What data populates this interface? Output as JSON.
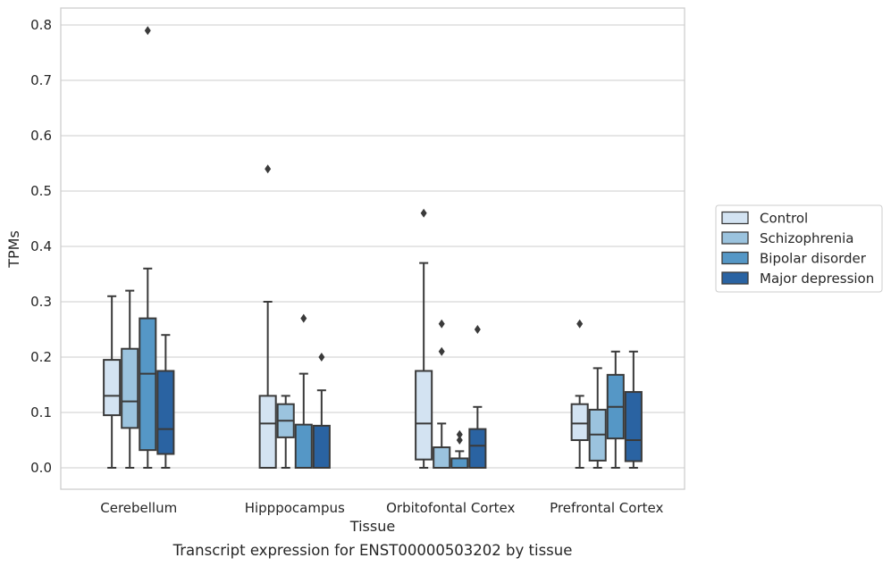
{
  "caption": "Transcript expression for ENST00000503202 by tissue",
  "chart_data": {
    "type": "box",
    "title": "",
    "xlabel": "Tissue",
    "ylabel": "TPMs",
    "ylim": [
      -0.04,
      0.83
    ],
    "yticks": [
      "0.0",
      "0.1",
      "0.2",
      "0.3",
      "0.4",
      "0.5",
      "0.6",
      "0.7",
      "0.8"
    ],
    "grid": "horizontal",
    "legend_position": "right",
    "categories": [
      "Cerebellum",
      "Hipppocampus",
      "Orbitofontal Cortex",
      "Prefrontal Cortex"
    ],
    "series": [
      {
        "name": "Control",
        "color": "#d3e3f2",
        "boxes": [
          {
            "min": 0.0,
            "q1": 0.095,
            "median": 0.13,
            "q3": 0.195,
            "max": 0.31,
            "outliers": []
          },
          {
            "min": 0.0,
            "q1": 0.0,
            "median": 0.08,
            "q3": 0.13,
            "max": 0.3,
            "outliers": [
              0.54
            ]
          },
          {
            "min": 0.0,
            "q1": 0.015,
            "median": 0.08,
            "q3": 0.175,
            "max": 0.37,
            "outliers": [
              0.46
            ]
          },
          {
            "min": 0.0,
            "q1": 0.05,
            "median": 0.08,
            "q3": 0.115,
            "max": 0.13,
            "outliers": [
              0.26
            ]
          }
        ]
      },
      {
        "name": "Schizophrenia",
        "color": "#9bc3de",
        "boxes": [
          {
            "min": 0.0,
            "q1": 0.072,
            "median": 0.12,
            "q3": 0.215,
            "max": 0.32,
            "outliers": []
          },
          {
            "min": 0.0,
            "q1": 0.055,
            "median": 0.085,
            "q3": 0.115,
            "max": 0.13,
            "outliers": []
          },
          {
            "min": 0.0,
            "q1": 0.0,
            "median": 0.0,
            "q3": 0.037,
            "max": 0.08,
            "outliers": [
              0.21,
              0.26
            ]
          },
          {
            "min": 0.0,
            "q1": 0.013,
            "median": 0.06,
            "q3": 0.105,
            "max": 0.18,
            "outliers": []
          }
        ]
      },
      {
        "name": "Bipolar disorder",
        "color": "#5597c6",
        "boxes": [
          {
            "min": 0.0,
            "q1": 0.032,
            "median": 0.17,
            "q3": 0.27,
            "max": 0.36,
            "outliers": [
              0.79
            ]
          },
          {
            "min": 0.0,
            "q1": 0.0,
            "median": 0.0,
            "q3": 0.078,
            "max": 0.17,
            "outliers": [
              0.27
            ]
          },
          {
            "min": 0.0,
            "q1": 0.0,
            "median": 0.0,
            "q3": 0.017,
            "max": 0.03,
            "outliers": [
              0.05,
              0.06
            ]
          },
          {
            "min": 0.0,
            "q1": 0.053,
            "median": 0.11,
            "q3": 0.168,
            "max": 0.21,
            "outliers": []
          }
        ]
      },
      {
        "name": "Major depression",
        "color": "#2a63a2",
        "boxes": [
          {
            "min": 0.0,
            "q1": 0.025,
            "median": 0.07,
            "q3": 0.175,
            "max": 0.24,
            "outliers": []
          },
          {
            "min": 0.0,
            "q1": 0.0,
            "median": 0.0,
            "q3": 0.076,
            "max": 0.14,
            "outliers": [
              0.2
            ]
          },
          {
            "min": 0.0,
            "q1": 0.0,
            "median": 0.04,
            "q3": 0.07,
            "max": 0.11,
            "outliers": [
              0.25
            ]
          },
          {
            "min": 0.0,
            "q1": 0.012,
            "median": 0.05,
            "q3": 0.137,
            "max": 0.21,
            "outliers": []
          }
        ]
      }
    ]
  }
}
